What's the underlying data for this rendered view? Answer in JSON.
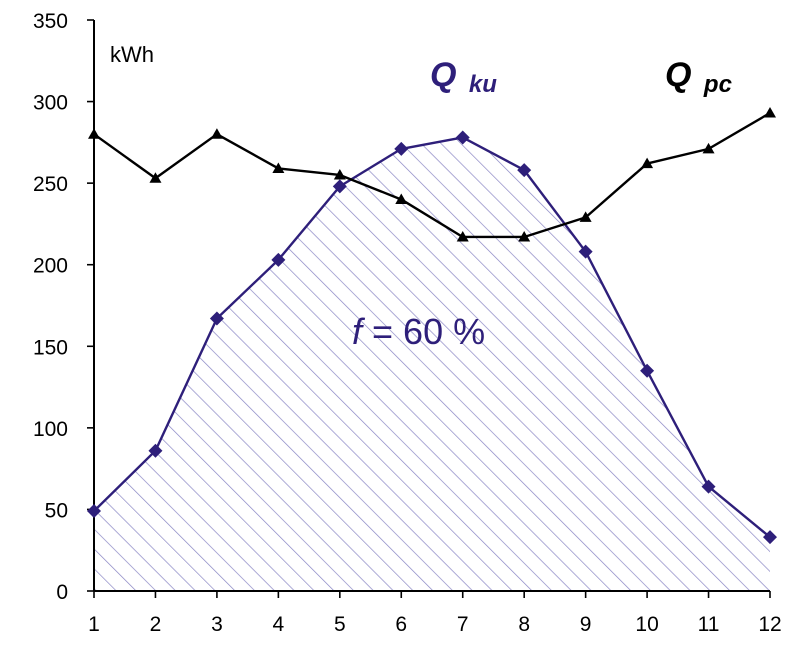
{
  "chart_data": {
    "type": "line",
    "x": [
      1,
      2,
      3,
      4,
      5,
      6,
      7,
      8,
      9,
      10,
      11,
      12
    ],
    "xlim": [
      1,
      12
    ],
    "ylim": [
      0,
      350
    ],
    "yticks": [
      0,
      50,
      100,
      150,
      200,
      250,
      300,
      350
    ],
    "xticks": [
      "1",
      "2",
      "3",
      "4",
      "5",
      "6",
      "7",
      "8",
      "9",
      "10",
      "11",
      "12"
    ],
    "unit_label": "kWh",
    "grid": false,
    "series": [
      {
        "name": "Q ku",
        "label_main": "Q",
        "label_sub": "ku",
        "values": [
          49,
          86,
          167,
          203,
          248,
          271,
          278,
          258,
          208,
          135,
          64,
          33
        ],
        "marker": "diamond",
        "color": "#2e1f7a",
        "filled_area": true
      },
      {
        "name": "Q pc",
        "label_main": "Q",
        "label_sub": "pc",
        "values": [
          280,
          253,
          280,
          259,
          255,
          240,
          217,
          217,
          229,
          262,
          271,
          293
        ],
        "marker": "triangle",
        "color": "#000000"
      }
    ],
    "annotation": {
      "italic_part": "f",
      "rest": " = 60 %"
    },
    "hatch_color": "#8a86c4"
  }
}
